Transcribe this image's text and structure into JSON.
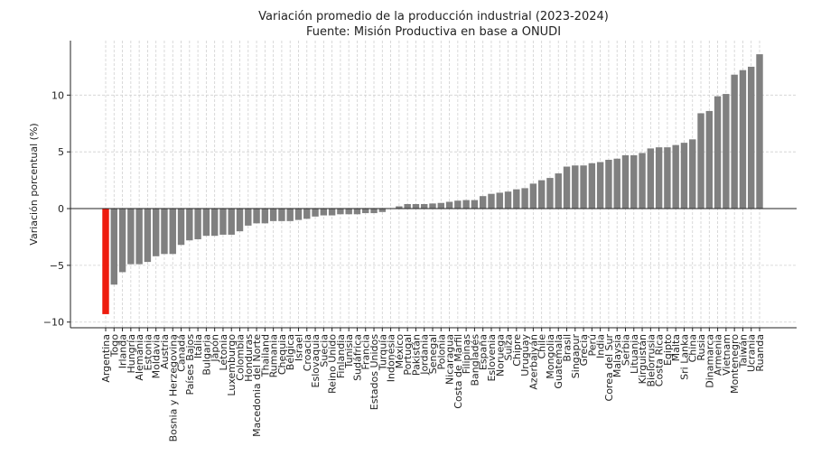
{
  "chart_data": {
    "type": "bar",
    "title": "Variación promedio de la producción industrial (2023-2024)",
    "subtitle": "Fuente: Misión Productiva en base a ONUDI",
    "xlabel": "",
    "ylabel": "Variación porcentual (%)",
    "ylim": [
      -10.5,
      14.8
    ],
    "yticks": [
      -10,
      -5,
      0,
      5,
      10
    ],
    "grid": true,
    "highlight_category": "Argentina",
    "colors": {
      "bar": "#808080",
      "highlight": "#ee1c0e",
      "grid": "#d0d0d0",
      "axis": "#222222"
    },
    "categories": [
      "Argentina",
      "Togo",
      "Irlanda",
      "Hungría",
      "Alemania",
      "Estonia",
      "Moldavia",
      "Austria",
      "Bosnia y Herzegovina",
      "Canadá",
      "Países Bajos",
      "Italia",
      "Bulgaria",
      "Japón",
      "Letonia",
      "Luxemburgo",
      "Colombia",
      "Honduras",
      "Macedonia del Norte",
      "Thailand",
      "Rumania",
      "Chequia",
      "Bélgica",
      "Israel",
      "Croacia",
      "Eslovaquia",
      "Suecia",
      "Reino Unido",
      "Finlandia",
      "Tunisia",
      "Sudáfrica",
      "Francia",
      "Estados Unidos",
      "Turquía",
      "Indonesia",
      "México",
      "Portugal",
      "Pakistán",
      "Jordania",
      "Senegal",
      "Polonia",
      "Nicaragua",
      "Costa de Marfil",
      "Filipinas",
      "Bangladés",
      "España",
      "Eslovenia",
      "Noruega",
      "Suiza",
      "Chipre",
      "Uruguay",
      "Azerbaiyán",
      "Chile",
      "Mongolia",
      "Guatemala",
      "Brasil",
      "Singapur",
      "Grecia",
      "Perú",
      "India",
      "Corea del Sur",
      "Malaysia",
      "Serbia",
      "Lituania",
      "Kirguistán",
      "Bielorrusia",
      "Costa Rica",
      "Egipto",
      "Malta",
      "Sri Lanka",
      "China",
      "Rusia",
      "Dinamarca",
      "Armenia",
      "Vietnam",
      "Montenegro",
      "Taiwán",
      "Ucrania",
      "Ruanda"
    ],
    "values": [
      -9.3,
      -6.7,
      -5.6,
      -4.9,
      -4.9,
      -4.7,
      -4.2,
      -4.0,
      -4.0,
      -3.2,
      -2.8,
      -2.7,
      -2.4,
      -2.4,
      -2.3,
      -2.3,
      -2.0,
      -1.5,
      -1.3,
      -1.3,
      -1.1,
      -1.1,
      -1.1,
      -1.0,
      -0.9,
      -0.7,
      -0.6,
      -0.6,
      -0.5,
      -0.5,
      -0.5,
      -0.4,
      -0.4,
      -0.3,
      0.02,
      0.2,
      0.4,
      0.4,
      0.4,
      0.45,
      0.5,
      0.6,
      0.7,
      0.75,
      0.75,
      1.1,
      1.3,
      1.4,
      1.5,
      1.7,
      1.8,
      2.2,
      2.5,
      2.7,
      3.1,
      3.7,
      3.8,
      3.8,
      4.0,
      4.1,
      4.3,
      4.4,
      4.7,
      4.7,
      4.9,
      5.3,
      5.4,
      5.4,
      5.6,
      5.8,
      6.1,
      8.4,
      8.6,
      9.9,
      10.1,
      11.8,
      12.2,
      12.5,
      13.6
    ]
  }
}
